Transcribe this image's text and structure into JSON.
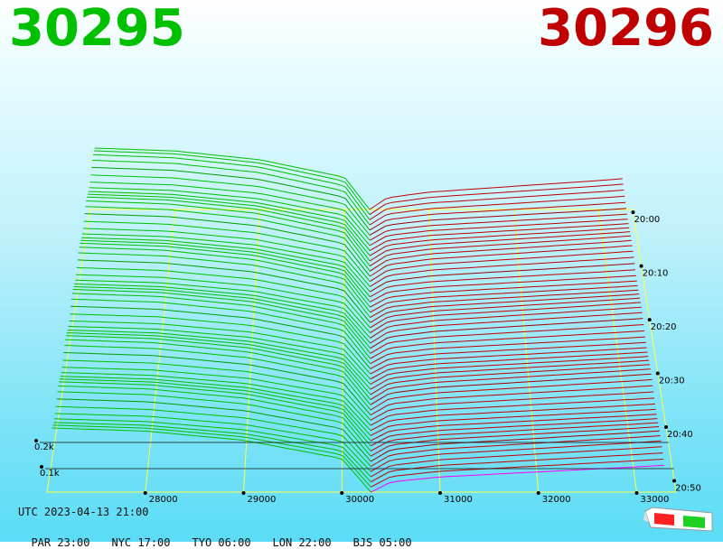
{
  "bid_price": "30295",
  "ask_price": "30296",
  "colors": {
    "bid": "#00c000",
    "ask": "#c00000",
    "grid": "#ffff44",
    "axis": "#000000",
    "best_ask": "#ff00ff"
  },
  "info": {
    "utc": "UTC 2023-04-13 21:00",
    "timezones": [
      "PAR 23:00",
      "NYC 17:00",
      "TYO 06:00",
      "LON 22:00",
      "BJS 05:00"
    ]
  },
  "chart_data": {
    "type": "area",
    "description_type": "3d-depth-waterfall",
    "x_ticks": [
      28000,
      29000,
      30000,
      31000,
      32000,
      33000
    ],
    "x_tick_labels": [
      "28000",
      "29000",
      "30000",
      "31000",
      "32000",
      "33000"
    ],
    "y_ticks": [
      0.1,
      0.2
    ],
    "y_tick_labels": [
      "0.1k",
      "0.2k"
    ],
    "time_ticks": [
      "20:00",
      "20:10",
      "20:20",
      "20:30",
      "20:40",
      "20:50"
    ],
    "xlim": [
      27000,
      33400
    ],
    "ylim_k": [
      0,
      0.6
    ],
    "mid_price": 30295.5,
    "snapshots": 56,
    "bid_depth_k": {
      "x": [
        27050,
        28000,
        29000,
        30000,
        30295
      ],
      "y": [
        0.42,
        0.4,
        0.34,
        0.22,
        0.0
      ]
    },
    "ask_depth_k": {
      "x": [
        30296,
        30500,
        31000,
        32000,
        33000,
        33300
      ],
      "y": [
        0.0,
        0.06,
        0.09,
        0.12,
        0.15,
        0.16
      ]
    }
  }
}
